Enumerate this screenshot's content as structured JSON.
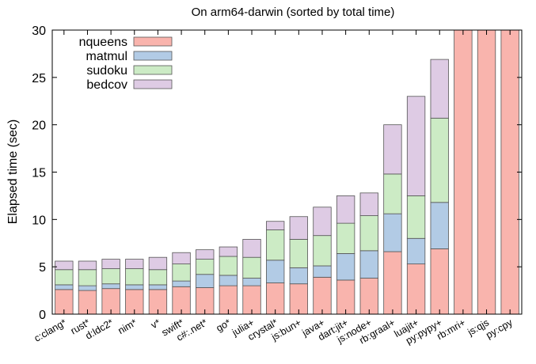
{
  "chart_data": {
    "type": "bar",
    "stacked": true,
    "title": "On arm64-darwin (sorted by total time)",
    "xlabel": "",
    "ylabel": "Elapsed time (sec)",
    "ylim": [
      0,
      30
    ],
    "yticks": [
      0,
      5,
      10,
      15,
      20,
      25,
      30
    ],
    "grid": false,
    "legend_position": "top-left",
    "categories": [
      "c:clang*",
      "rust*",
      "d:ldc2*",
      "nim*",
      "v*",
      "swift*",
      "c#:.net*",
      "go*",
      "julia+",
      "crystal*",
      "js:bun+",
      "java+",
      "dart:jit+",
      "js:node+",
      "rb:graal+",
      "luajit+",
      "py:pypy+",
      "rb:mri+",
      "js:qjs",
      "py:cpy"
    ],
    "series": [
      {
        "name": "nqueens",
        "color": "#f9b4ad",
        "values": [
          2.6,
          2.5,
          2.7,
          2.6,
          2.6,
          2.9,
          2.8,
          3.0,
          3.0,
          3.3,
          3.2,
          3.9,
          3.6,
          3.8,
          6.6,
          5.3,
          6.9,
          30,
          30,
          30
        ]
      },
      {
        "name": "matmul",
        "color": "#b2cbe5",
        "values": [
          0.5,
          0.5,
          0.5,
          0.5,
          0.5,
          0.6,
          1.4,
          1.1,
          0.8,
          2.4,
          1.7,
          1.2,
          2.8,
          2.9,
          4.0,
          2.7,
          4.9,
          0,
          0,
          0
        ]
      },
      {
        "name": "sudoku",
        "color": "#ccebc5",
        "values": [
          1.6,
          1.7,
          1.6,
          1.7,
          1.6,
          1.8,
          1.6,
          2.0,
          2.2,
          3.2,
          3.0,
          3.2,
          3.2,
          3.7,
          4.2,
          4.5,
          8.9,
          0,
          0,
          0
        ]
      },
      {
        "name": "bedcov",
        "color": "#decbe4",
        "values": [
          0.9,
          0.9,
          1.0,
          1.0,
          1.3,
          1.2,
          1.0,
          1.0,
          1.9,
          0.9,
          2.4,
          3.0,
          2.9,
          2.4,
          5.2,
          10.5,
          6.2,
          0,
          0,
          0
        ]
      }
    ]
  }
}
